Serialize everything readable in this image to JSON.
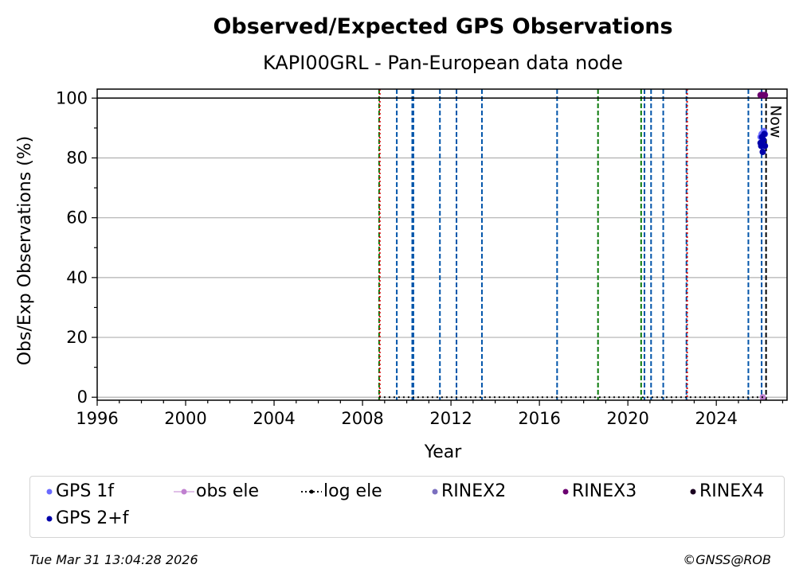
{
  "chart_data": {
    "type": "scatter",
    "title": "Observed/Expected GPS Observations",
    "subtitle": "KAPI00GRL - Pan-European data node",
    "xlabel": "Year",
    "ylabel": "Obs/Exp Observations (%)",
    "xlim": [
      1996,
      2027.2
    ],
    "ylim": [
      -1,
      103
    ],
    "x_ticks": [
      "1996",
      "2000",
      "2004",
      "2008",
      "2012",
      "2016",
      "2020",
      "2024"
    ],
    "y_ticks": [
      "0",
      "20",
      "40",
      "60",
      "80",
      "100"
    ],
    "grid": "horizontal",
    "reference_line": 100,
    "now_label": "Now",
    "now_x": 2026.25,
    "vertical_events": [
      {
        "x": 2008.75,
        "color": "#0a7a0a",
        "style": "dashed"
      },
      {
        "x": 2008.78,
        "color": "#d40000",
        "style": "dotted"
      },
      {
        "x": 2009.55,
        "color": "#0055aa",
        "style": "dashed"
      },
      {
        "x": 2010.25,
        "color": "#0055aa",
        "style": "dashed"
      },
      {
        "x": 2010.3,
        "color": "#0055aa",
        "style": "dashed"
      },
      {
        "x": 2011.5,
        "color": "#0055aa",
        "style": "dashed"
      },
      {
        "x": 2012.25,
        "color": "#0055aa",
        "style": "dashed"
      },
      {
        "x": 2013.4,
        "color": "#0055aa",
        "style": "dashed"
      },
      {
        "x": 2016.8,
        "color": "#0055aa",
        "style": "dashed"
      },
      {
        "x": 2018.65,
        "color": "#0a7a0a",
        "style": "dashed"
      },
      {
        "x": 2020.6,
        "color": "#0a7a0a",
        "style": "dashed"
      },
      {
        "x": 2020.75,
        "color": "#0055aa",
        "style": "dashed"
      },
      {
        "x": 2021.05,
        "color": "#0055aa",
        "style": "dashed"
      },
      {
        "x": 2021.6,
        "color": "#0055aa",
        "style": "dashed"
      },
      {
        "x": 2022.65,
        "color": "#0055aa",
        "style": "dashed"
      },
      {
        "x": 2022.68,
        "color": "#d40000",
        "style": "dotted"
      },
      {
        "x": 2025.45,
        "color": "#0055aa",
        "style": "dashed"
      },
      {
        "x": 2026.05,
        "color": "#0055aa",
        "style": "dashed"
      },
      {
        "x": 2026.25,
        "color": "#000000",
        "style": "dashed"
      }
    ],
    "series": [
      {
        "name": "GPS 1f",
        "color": "#6a6aff",
        "marker": "dot",
        "x": [
          2026.0,
          2026.05,
          2026.1,
          2026.15,
          2026.2
        ],
        "y": [
          87,
          88,
          86,
          89,
          88
        ]
      },
      {
        "name": "obs ele",
        "color": "#c080d0",
        "marker": "line-dot",
        "x": [
          2026.1
        ],
        "y": [
          0
        ]
      },
      {
        "name": "log ele",
        "color": "#000000",
        "marker": "dotted-line",
        "x": [
          2008.75,
          2026.25
        ],
        "y": [
          0,
          0
        ]
      },
      {
        "name": "RINEX2",
        "color": "#7b6fbf",
        "marker": "dot",
        "x": [],
        "y": []
      },
      {
        "name": "RINEX3",
        "color": "#6b0070",
        "marker": "dot",
        "x": [
          2026.0,
          2026.05,
          2026.1,
          2026.15,
          2026.2
        ],
        "y": [
          101,
          101,
          101,
          101,
          101
        ]
      },
      {
        "name": "RINEX4",
        "color": "#1a0020",
        "marker": "dot",
        "x": [],
        "y": []
      },
      {
        "name": "GPS 2+f",
        "color": "#0000aa",
        "marker": "dot",
        "x": [
          2026.0,
          2026.03,
          2026.07,
          2026.1,
          2026.13,
          2026.17,
          2026.2
        ],
        "y": [
          85,
          84,
          87,
          82,
          86,
          88,
          84
        ]
      }
    ]
  },
  "legend": [
    {
      "label": "GPS 1f",
      "color": "#6a6aff",
      "marker": "dot"
    },
    {
      "label": "obs ele",
      "color": "#c080d0",
      "marker": "line-dot"
    },
    {
      "label": "log ele",
      "color": "#000000",
      "marker": "dotted-line"
    },
    {
      "label": "RINEX2",
      "color": "#7b6fbf",
      "marker": "dot"
    },
    {
      "label": "RINEX3",
      "color": "#6b0070",
      "marker": "dot"
    },
    {
      "label": "RINEX4",
      "color": "#1a0020",
      "marker": "dot"
    },
    {
      "label": "GPS 2+f",
      "color": "#0000aa",
      "marker": "dot"
    }
  ],
  "footer": {
    "timestamp": "Tue Mar 31 13:04:28 2026",
    "credit": "©GNSS@ROB"
  }
}
